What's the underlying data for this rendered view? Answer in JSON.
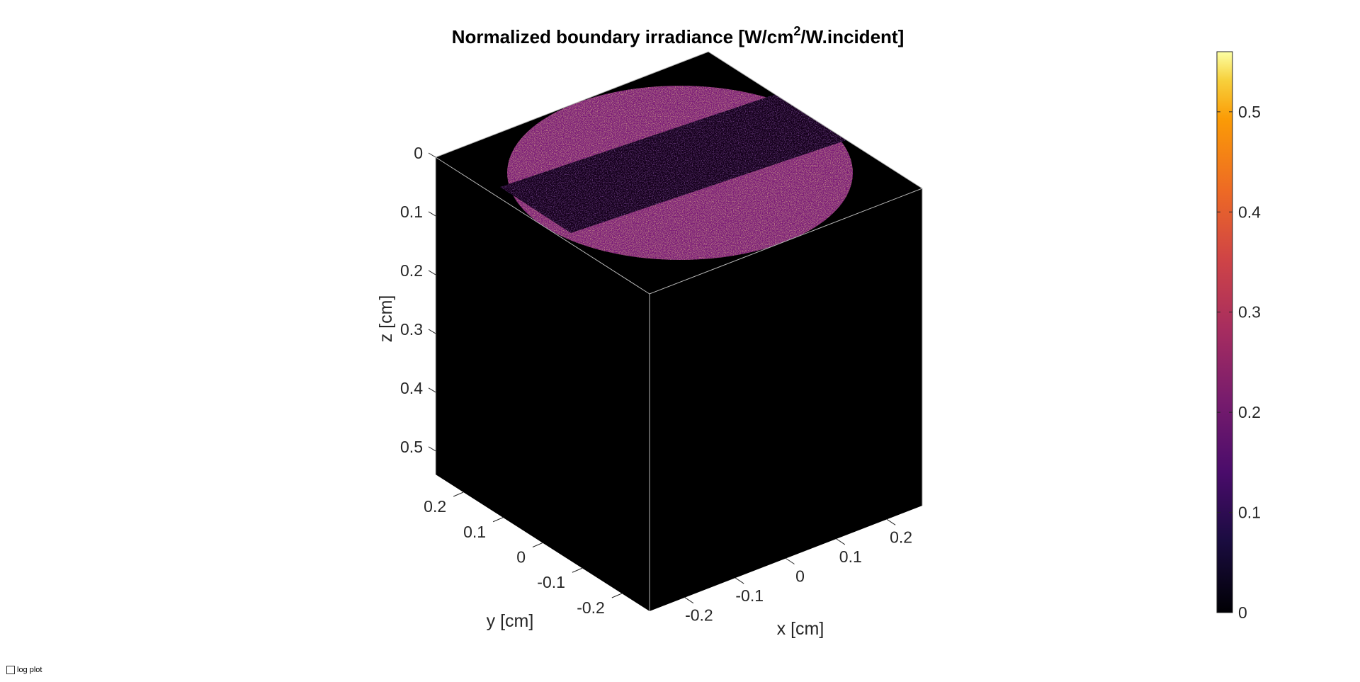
{
  "chart_data": {
    "type": "heatmap",
    "title": "Normalized boundary irradiance [W/cm",
    "title_sup": "2",
    "title_end": "/W.incident]",
    "xlabel": "x [cm]",
    "ylabel": "y [cm]",
    "zlabel": "z [cm]",
    "x_ticks": [
      "-0.2",
      "-0.1",
      "0",
      "0.1",
      "0.2"
    ],
    "x_tick_values": [
      -0.2,
      -0.1,
      0,
      0.1,
      0.2
    ],
    "y_ticks": [
      "0.2",
      "0.1",
      "0",
      "-0.1",
      "-0.2"
    ],
    "y_tick_values": [
      0.2,
      0.1,
      0,
      -0.1,
      -0.2
    ],
    "z_ticks": [
      "0",
      "0.1",
      "0.2",
      "0.3",
      "0.4",
      "0.5"
    ],
    "z_tick_values": [
      0,
      0.1,
      0.2,
      0.3,
      0.4,
      0.5
    ],
    "xlim": [
      -0.27,
      0.27
    ],
    "ylim": [
      -0.27,
      0.27
    ],
    "zlim": [
      0,
      0.54
    ],
    "colormap": "inferno",
    "colorbar": {
      "ticks": [
        "0",
        "0.1",
        "0.2",
        "0.3",
        "0.4",
        "0.5"
      ],
      "tick_values": [
        0,
        0.1,
        0.2,
        0.3,
        0.4,
        0.5
      ],
      "range": [
        0,
        0.56
      ],
      "location": "right"
    },
    "top_surface": {
      "beam_shape": "circular",
      "beam_radius": 0.25,
      "typical_irradiance": 0.2,
      "peak_irradiance": 0.56,
      "dark_band_irradiance": 0.03
    },
    "side_faces_irradiance": 0
  },
  "controls": {
    "log_plot_label": "log plot",
    "log_plot_checked": false
  }
}
